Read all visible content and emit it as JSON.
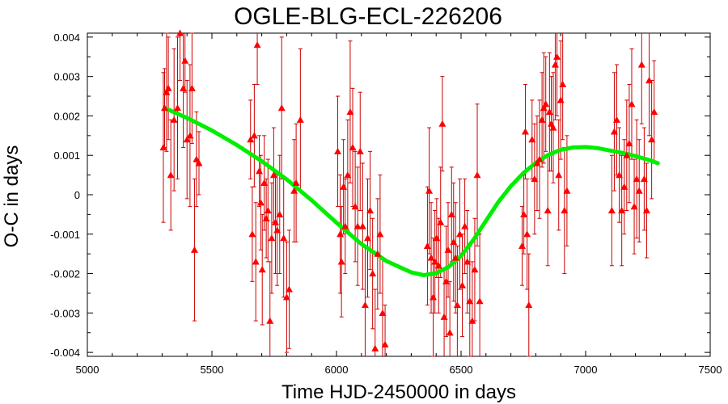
{
  "chart_data": {
    "type": "scatter",
    "title": "OGLE-BLG-ECL-226206",
    "xlabel": "Time HJD-2450000 in days",
    "ylabel": "O-C in days",
    "xlim": [
      5000,
      7500
    ],
    "ylim": [
      -0.0041,
      0.0041
    ],
    "xticks": [
      5000,
      5500,
      6000,
      6500,
      7000,
      7500
    ],
    "xtick_labels": [
      "5000",
      "5500",
      "6000",
      "6500",
      "7000",
      "7500"
    ],
    "yticks": [
      -0.004,
      -0.003,
      -0.002,
      -0.001,
      0,
      0.001,
      0.002,
      0.003,
      0.004
    ],
    "ytick_labels": [
      "-0.004",
      "-0.003",
      "-0.002",
      "-0.001",
      "0",
      "0.001",
      "0.002",
      "0.003",
      "0.004"
    ],
    "grid": false,
    "colors": {
      "points": "#ff0000",
      "errorbars": "#cc0000",
      "model": "#00ee00"
    },
    "series": [
      {
        "kind": "points_with_errorbars",
        "points": [
          [
            5305,
            0.0012,
            0.0019
          ],
          [
            5310,
            0.0022,
            0.001
          ],
          [
            5318,
            0.0026,
            0.0015
          ],
          [
            5325,
            0.0027,
            0.0013
          ],
          [
            5335,
            0.0005,
            0.0014
          ],
          [
            5348,
            0.0019,
            0.0018
          ],
          [
            5362,
            0.0022,
            0.0018
          ],
          [
            5372,
            0.0041,
            0.0012
          ],
          [
            5385,
            0.0027,
            0.0015
          ],
          [
            5392,
            0.0034,
            0.0008
          ],
          [
            5400,
            0.0014,
            0.0015
          ],
          [
            5412,
            0.0015,
            0.0018
          ],
          [
            5420,
            0.0027,
            0.0014
          ],
          [
            5430,
            -0.0014,
            0.0018
          ],
          [
            5438,
            0.0009,
            0.0012
          ],
          [
            5448,
            0.0008,
            0.0008
          ],
          [
            5655,
            0.0014,
            0.001
          ],
          [
            5662,
            -0.001,
            0.0012
          ],
          [
            5670,
            0.0015,
            0.0013
          ],
          [
            5676,
            -0.0017,
            0.0015
          ],
          [
            5682,
            0.0038,
            0.001
          ],
          [
            5690,
            0.0006,
            0.0009
          ],
          [
            5696,
            -0.0002,
            0.0012
          ],
          [
            5702,
            -0.0019,
            0.0014
          ],
          [
            5710,
            0.0003,
            0.0012
          ],
          [
            5718,
            -0.0006,
            0.001
          ],
          [
            5725,
            -0.0004,
            0.0013
          ],
          [
            5733,
            -0.0032,
            0.0015
          ],
          [
            5740,
            -0.0011,
            0.0014
          ],
          [
            5748,
            0.0005,
            0.0012
          ],
          [
            5755,
            -0.0007,
            0.0013
          ],
          [
            5762,
            -0.0009,
            0.0014
          ],
          [
            5772,
            -0.0005,
            0.0015
          ],
          [
            5780,
            0.0022,
            0.0018
          ],
          [
            5788,
            -0.0011,
            0.0015
          ],
          [
            5800,
            -0.0026,
            0.0014
          ],
          [
            5810,
            -0.0024,
            0.0015
          ],
          [
            5830,
            0.0001,
            0.0013
          ],
          [
            5838,
            0.0003,
            0.0015
          ],
          [
            5855,
            0.0019,
            0.0018
          ],
          [
            6005,
            0.0011,
            0.0014
          ],
          [
            6015,
            -0.001,
            0.0015
          ],
          [
            6020,
            -0.0017,
            0.0014
          ],
          [
            6028,
            0.0002,
            0.0012
          ],
          [
            6035,
            -0.0008,
            0.0012
          ],
          [
            6045,
            0.0005,
            0.0014
          ],
          [
            6055,
            0.0021,
            0.0018
          ],
          [
            6065,
            0.0012,
            0.0015
          ],
          [
            6075,
            -0.0003,
            0.0014
          ],
          [
            6085,
            -0.0008,
            0.0015
          ],
          [
            6095,
            0.0011,
            0.0015
          ],
          [
            6105,
            -0.0008,
            0.0016
          ],
          [
            6115,
            -0.0028,
            0.0015
          ],
          [
            6125,
            -0.0011,
            0.0015
          ],
          [
            6135,
            -0.0004,
            0.0015
          ],
          [
            6145,
            -0.002,
            0.0014
          ],
          [
            6155,
            -0.0039,
            0.0015
          ],
          [
            6165,
            -0.0015,
            0.0014
          ],
          [
            6175,
            -0.001,
            0.0015
          ],
          [
            6185,
            -0.003,
            0.0014
          ],
          [
            6195,
            -0.0038,
            0.001
          ],
          [
            6365,
            -0.0013,
            0.0015
          ],
          [
            6372,
            0.0001,
            0.0016
          ],
          [
            6380,
            -0.0016,
            0.0014
          ],
          [
            6388,
            -0.0026,
            0.0015
          ],
          [
            6395,
            -0.0017,
            0.0013
          ],
          [
            6402,
            -0.0011,
            0.001
          ],
          [
            6410,
            -0.0018,
            0.0012
          ],
          [
            6418,
            -0.0007,
            0.0014
          ],
          [
            6425,
            0.0018,
            0.0012
          ],
          [
            6432,
            -0.0031,
            0.0012
          ],
          [
            6440,
            -0.0022,
            0.0014
          ],
          [
            6448,
            -0.0014,
            0.0012
          ],
          [
            6455,
            -0.0035,
            0.0013
          ],
          [
            6462,
            -0.0005,
            0.0012
          ],
          [
            6470,
            -0.0012,
            0.0015
          ],
          [
            6478,
            -0.0016,
            0.0014
          ],
          [
            6485,
            -0.0028,
            0.0015
          ],
          [
            6495,
            -0.001,
            0.0014
          ],
          [
            6505,
            -0.0023,
            0.0013
          ],
          [
            6515,
            -0.0008,
            0.0012
          ],
          [
            6525,
            -0.0017,
            0.0013
          ],
          [
            6535,
            -0.0027,
            0.0014
          ],
          [
            6545,
            -0.0032,
            0.0015
          ],
          [
            6555,
            -0.0019,
            0.0013
          ],
          [
            6565,
            0.0005,
            0.0018
          ],
          [
            6575,
            -0.0027,
            0.0017
          ],
          [
            6745,
            -0.0013,
            0.001
          ],
          [
            6752,
            -0.0005,
            0.001
          ],
          [
            6758,
            0.0016,
            0.0012
          ],
          [
            6765,
            -0.001,
            0.0014
          ],
          [
            6772,
            -0.0028,
            0.0013
          ],
          [
            6785,
            0.0014,
            0.001
          ],
          [
            6795,
            0.0004,
            0.0014
          ],
          [
            6805,
            0.0008,
            0.0012
          ],
          [
            6815,
            0.0009,
            0.0015
          ],
          [
            6825,
            0.0019,
            0.0012
          ],
          [
            6832,
            0.0022,
            0.0014
          ],
          [
            6840,
            0.0023,
            0.0012
          ],
          [
            6848,
            -0.0004,
            0.0014
          ],
          [
            6855,
            0.0021,
            0.0015
          ],
          [
            6862,
            0.0018,
            0.0012
          ],
          [
            6870,
            0.0017,
            0.0014
          ],
          [
            6878,
            0.0033,
            0.0014
          ],
          [
            6885,
            0.0035,
            0.0015
          ],
          [
            6892,
            0.0005,
            0.0014
          ],
          [
            6900,
            0.0024,
            0.0015
          ],
          [
            6908,
            0.0028,
            0.0014
          ],
          [
            6915,
            -0.0004,
            0.0016
          ],
          [
            6925,
            0.0001,
            0.0014
          ],
          [
            7105,
            -0.0004,
            0.0014
          ],
          [
            7115,
            0.0016,
            0.0015
          ],
          [
            7125,
            0.0019,
            0.0014
          ],
          [
            7135,
            0.0005,
            0.0012
          ],
          [
            7145,
            -0.0004,
            0.0014
          ],
          [
            7155,
            0.0002,
            0.0012
          ],
          [
            7165,
            0.001,
            0.0014
          ],
          [
            7175,
            0.0013,
            0.0015
          ],
          [
            7185,
            0.0023,
            0.0014
          ],
          [
            7195,
            -0.0003,
            0.0012
          ],
          [
            7205,
            0.0004,
            0.0015
          ],
          [
            7215,
            0.0001,
            0.0013
          ],
          [
            7225,
            0.0033,
            0.0015
          ],
          [
            7235,
            0.0004,
            0.0013
          ],
          [
            7245,
            -0.0004,
            0.0012
          ],
          [
            7255,
            0.0029,
            0.0014
          ],
          [
            7265,
            0.0014,
            0.0015
          ],
          [
            7275,
            0.0021,
            0.0013
          ]
        ]
      },
      {
        "kind": "model_curve",
        "x": [
          5310,
          5400,
          5500,
          5600,
          5700,
          5800,
          5900,
          6000,
          6100,
          6200,
          6300,
          6350,
          6400,
          6450,
          6500,
          6550,
          6600,
          6650,
          6700,
          6750,
          6800,
          6850,
          6900,
          6950,
          7000,
          7050,
          7100,
          7150,
          7200,
          7250,
          7290
        ],
        "y": [
          0.0022,
          0.00195,
          0.00163,
          0.00126,
          0.00085,
          0.00039,
          -0.00014,
          -0.00071,
          -0.00125,
          -0.00168,
          -0.00197,
          -0.00204,
          -0.00199,
          -0.00183,
          -0.00155,
          -0.00114,
          -0.00066,
          -0.00018,
          0.00022,
          0.00055,
          0.00081,
          0.00101,
          0.00114,
          0.0012,
          0.00121,
          0.00118,
          0.00112,
          0.00106,
          0.00098,
          0.00089,
          0.0008
        ]
      }
    ]
  }
}
